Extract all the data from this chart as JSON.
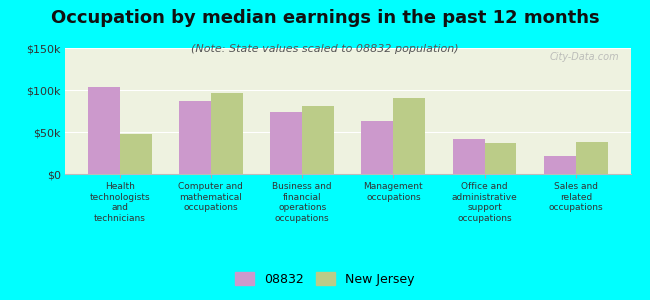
{
  "title": "Occupation by median earnings in the past 12 months",
  "subtitle": "(Note: State values scaled to 08832 population)",
  "background_color": "#00FFFF",
  "plot_bg_color": "#eef2e0",
  "categories": [
    "Health\ntechnologists\nand\ntechnicians",
    "Computer and\nmathematical\noccupations",
    "Business and\nfinancial\noperations\noccupations",
    "Management\noccupations",
    "Office and\nadministrative\nsupport\noccupations",
    "Sales and\nrelated\noccupations"
  ],
  "values_08832": [
    103000,
    87000,
    74000,
    63000,
    42000,
    22000
  ],
  "values_nj": [
    48000,
    97000,
    81000,
    91000,
    37000,
    38000
  ],
  "color_08832": "#cc99cc",
  "color_nj": "#bbcc88",
  "ylim": [
    0,
    150000
  ],
  "yticks": [
    0,
    50000,
    100000,
    150000
  ],
  "ytick_labels": [
    "$0",
    "$50k",
    "$100k",
    "$150k"
  ],
  "legend_08832": "08832",
  "legend_nj": "New Jersey",
  "watermark": "City-Data.com",
  "title_fontsize": 13,
  "subtitle_fontsize": 8
}
